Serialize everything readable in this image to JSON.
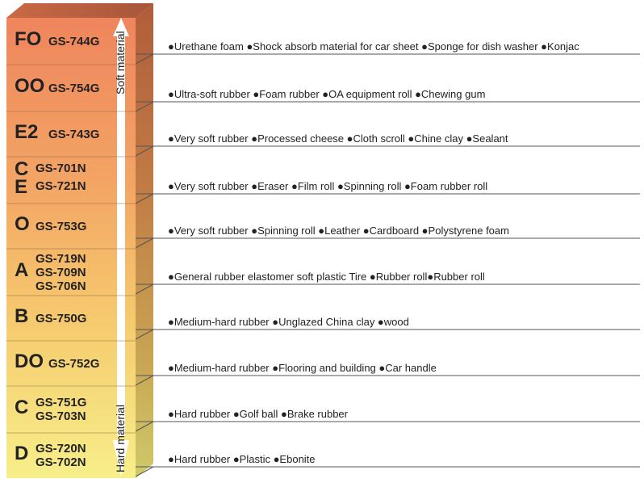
{
  "rows": [
    {
      "grade": "FO",
      "codes": [
        "GS-744G"
      ],
      "desc": "●Urethane foam ●Shock absorb material for car sheet ●Sponge for dish washer ●Konjac"
    },
    {
      "grade": "OO",
      "codes": [
        "GS-754G"
      ],
      "desc": "●Ultra-soft rubber ●Foam rubber ●OA equipment roll ●Chewing gum"
    },
    {
      "grade": "E2",
      "codes": [
        "GS-743G"
      ],
      "desc": "●Very soft rubber ●Processed cheese ●Cloth scroll ●Chine clay ●Sealant"
    },
    {
      "grade": "C\nE",
      "codes": [
        "GS-701N",
        "GS-721N"
      ],
      "desc": "●Very soft rubber ●Eraser ●Film roll ●Spinning roll ●Foam rubber roll"
    },
    {
      "grade": "O",
      "codes": [
        "GS-753G"
      ],
      "desc": "●Very soft rubber ●Spinning roll ●Leather ●Cardboard ●Polystyrene foam"
    },
    {
      "grade": "A",
      "codes": [
        "GS-719N",
        "GS-709N",
        "GS-706N"
      ],
      "desc": "●General rubber elastomer soft plastic Tire ●Rubber roll●Rubber roll"
    },
    {
      "grade": "B",
      "codes": [
        "GS-750G"
      ],
      "desc": "●Medium-hard rubber ●Unglazed China clay ●wood"
    },
    {
      "grade": "DO",
      "codes": [
        "GS-752G"
      ],
      "desc": "●Medium-hard rubber ●Flooring and building ●Car handle"
    },
    {
      "grade": "C",
      "codes": [
        "GS-751G",
        "GS-703N"
      ],
      "desc": "●Hard rubber ●Golf ball ●Brake rubber"
    },
    {
      "grade": "D",
      "codes": [
        "GS-720N",
        "GS-702N"
      ],
      "desc": "●Hard rubber ●Plastic ●Ebonite"
    }
  ],
  "arrow": {
    "top_label": "Soft material",
    "bottom_label": "Hard material"
  },
  "colors": {
    "top": "#f08a5f",
    "bottom": "#f6ec88",
    "side_top": "#b45d3a",
    "side_bottom": "#c9b85a",
    "leader": "#555555",
    "arrow": "#ffffff"
  }
}
